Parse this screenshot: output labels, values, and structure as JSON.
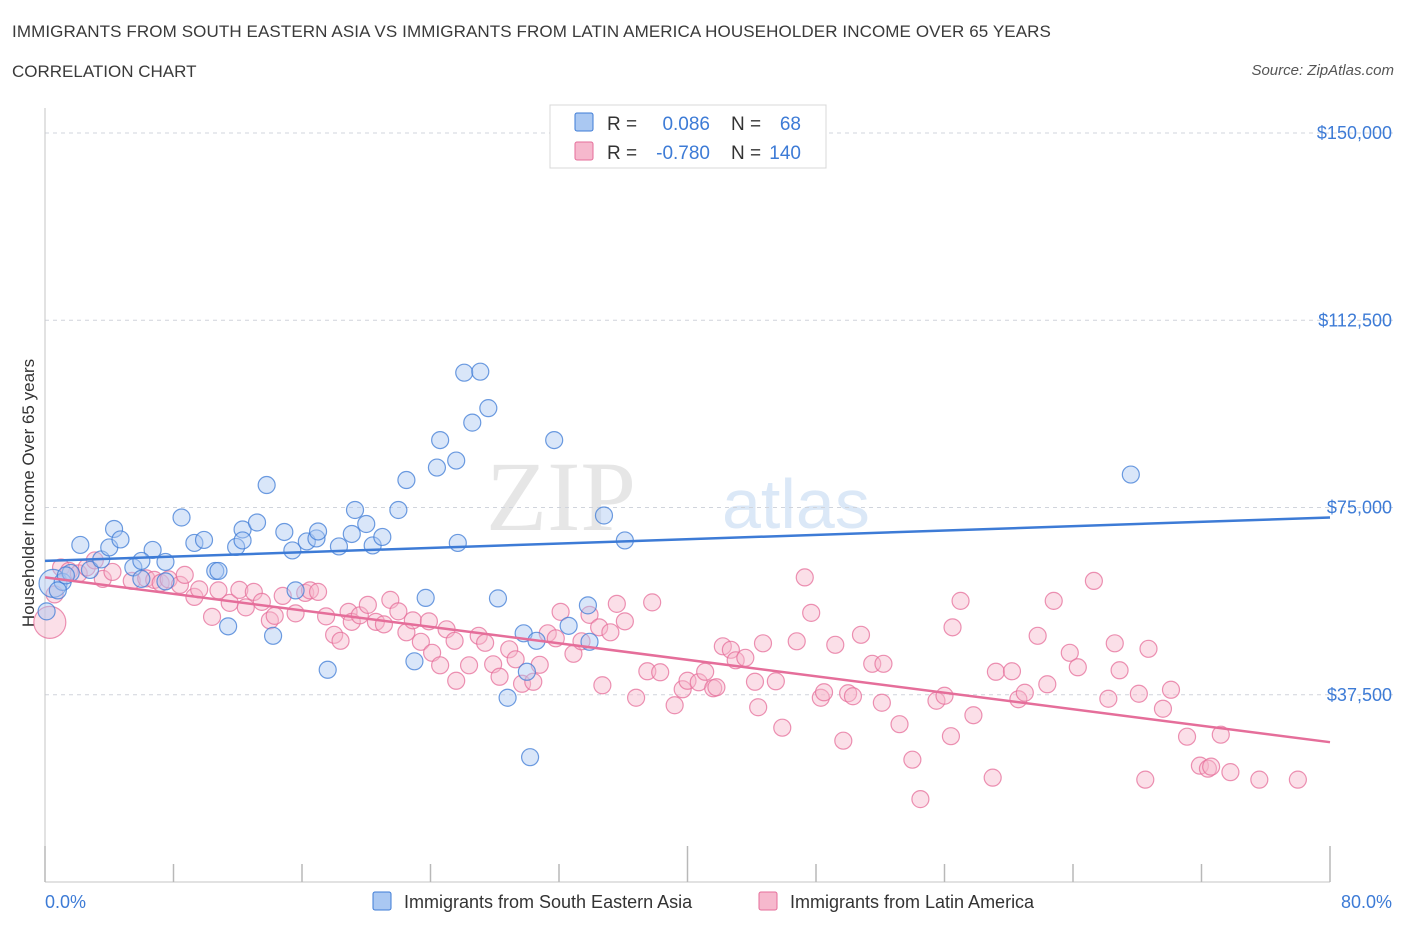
{
  "title": "IMMIGRANTS FROM SOUTH EASTERN ASIA VS IMMIGRANTS FROM LATIN AMERICA HOUSEHOLDER INCOME OVER 65 YEARS",
  "subtitle": "CORRELATION CHART",
  "source": "Source: ZipAtlas.com",
  "watermark": {
    "zip": "ZIP",
    "atlas": "atlas"
  },
  "colors": {
    "blue": "#3d7bd6",
    "blue_fill": "#aac8f2",
    "pink": "#e56e9a",
    "pink_fill": "#f6b8cd",
    "grid": "#d0d4dc",
    "value_text": "#3d7bd6"
  },
  "stats": [
    {
      "series": "Immigrants from South Eastern Asia",
      "r_label": "R =",
      "r": "0.086",
      "n_label": "N =",
      "n": "68",
      "color": "blue"
    },
    {
      "series": "Immigrants from Latin America",
      "r_label": "R =",
      "r": "-0.780",
      "n_label": "N =",
      "n": "140",
      "color": "pink"
    }
  ],
  "chart_data": {
    "type": "scatter",
    "title": "IMMIGRANTS FROM SOUTH EASTERN ASIA VS IMMIGRANTS FROM LATIN AMERICA HOUSEHOLDER INCOME OVER 65 YEARS",
    "xlabel": "",
    "ylabel": "Householder Income Over 65 years",
    "xlim": [
      0,
      80
    ],
    "ylim": [
      0,
      150000
    ],
    "x_tick_labels": [
      "0.0%",
      "80.0%"
    ],
    "y_ticks": [
      37500,
      75000,
      112500,
      150000
    ],
    "y_tick_labels": [
      "$37,500",
      "$75,000",
      "$112,500",
      "$150,000"
    ],
    "grid": "horizontal dashed",
    "legend_position": "bottom",
    "series": [
      {
        "name": "Immigrants from South Eastern Asia",
        "color": "blue",
        "trend": {
          "x": [
            0,
            80
          ],
          "y": [
            64300,
            73000
          ]
        },
        "points": [
          [
            0.5,
            59800
          ],
          [
            1.1,
            60100
          ],
          [
            1.6,
            61900
          ],
          [
            2.2,
            67500
          ],
          [
            2.8,
            62500
          ],
          [
            3.5,
            64600
          ],
          [
            4.0,
            67000
          ],
          [
            4.3,
            70700
          ],
          [
            4.7,
            68600
          ],
          [
            5.5,
            63000
          ],
          [
            6.0,
            60700
          ],
          [
            6.7,
            66500
          ],
          [
            6.0,
            64300
          ],
          [
            7.5,
            64100
          ],
          [
            7.5,
            60200
          ],
          [
            8.5,
            73000
          ],
          [
            9.3,
            67900
          ],
          [
            9.9,
            68500
          ],
          [
            10.6,
            62300
          ],
          [
            10.8,
            62300
          ],
          [
            11.4,
            51200
          ],
          [
            11.9,
            67100
          ],
          [
            12.3,
            70600
          ],
          [
            12.3,
            68400
          ],
          [
            13.2,
            72000
          ],
          [
            13.8,
            79500
          ],
          [
            14.2,
            49300
          ],
          [
            14.9,
            70100
          ],
          [
            15.4,
            66400
          ],
          [
            15.6,
            58400
          ],
          [
            16.3,
            68200
          ],
          [
            16.9,
            68800
          ],
          [
            17.0,
            70200
          ],
          [
            17.6,
            42500
          ],
          [
            18.3,
            67200
          ],
          [
            19.1,
            69700
          ],
          [
            19.3,
            74500
          ],
          [
            20.0,
            71700
          ],
          [
            20.4,
            67400
          ],
          [
            21.0,
            69100
          ],
          [
            22.0,
            74500
          ],
          [
            22.5,
            80500
          ],
          [
            23.0,
            44200
          ],
          [
            23.7,
            56900
          ],
          [
            24.4,
            83000
          ],
          [
            24.6,
            88500
          ],
          [
            25.6,
            84400
          ],
          [
            25.7,
            67900
          ],
          [
            26.1,
            102000
          ],
          [
            26.6,
            92000
          ],
          [
            27.1,
            102200
          ],
          [
            27.6,
            94900
          ],
          [
            28.2,
            56800
          ],
          [
            28.8,
            36900
          ],
          [
            29.8,
            49800
          ],
          [
            30.0,
            42100
          ],
          [
            30.2,
            25000
          ],
          [
            30.6,
            48300
          ],
          [
            31.7,
            88500
          ],
          [
            32.6,
            51300
          ],
          [
            33.8,
            55400
          ],
          [
            33.9,
            48100
          ],
          [
            34.8,
            73400
          ],
          [
            36.1,
            68400
          ],
          [
            67.6,
            81600
          ],
          [
            0.1,
            54200
          ],
          [
            0.8,
            58400
          ],
          [
            1.3,
            61400
          ]
        ]
      },
      {
        "name": "Immigrants from Latin America",
        "color": "pink",
        "trend": {
          "x": [
            0,
            80
          ],
          "y": [
            61000,
            28000
          ]
        },
        "points": [
          [
            0.3,
            52000
          ],
          [
            0.6,
            57600
          ],
          [
            1.0,
            63000
          ],
          [
            1.5,
            62300
          ],
          [
            2.1,
            61800
          ],
          [
            2.6,
            63000
          ],
          [
            3.1,
            64400
          ],
          [
            3.6,
            60700
          ],
          [
            4.2,
            62100
          ],
          [
            5.4,
            60300
          ],
          [
            6.3,
            60800
          ],
          [
            6.8,
            60500
          ],
          [
            7.2,
            59900
          ],
          [
            7.7,
            60600
          ],
          [
            8.4,
            59500
          ],
          [
            8.7,
            61500
          ],
          [
            9.3,
            57100
          ],
          [
            9.6,
            58600
          ],
          [
            10.4,
            53100
          ],
          [
            10.8,
            58400
          ],
          [
            11.5,
            55900
          ],
          [
            12.1,
            58500
          ],
          [
            12.5,
            55000
          ],
          [
            13.0,
            58100
          ],
          [
            13.5,
            56100
          ],
          [
            14.0,
            52400
          ],
          [
            14.3,
            53300
          ],
          [
            14.8,
            57300
          ],
          [
            15.6,
            53800
          ],
          [
            16.2,
            57900
          ],
          [
            16.5,
            58400
          ],
          [
            17.0,
            58100
          ],
          [
            17.5,
            53200
          ],
          [
            18.0,
            49500
          ],
          [
            18.4,
            48300
          ],
          [
            18.9,
            54100
          ],
          [
            19.1,
            52100
          ],
          [
            19.6,
            53400
          ],
          [
            20.1,
            55500
          ],
          [
            20.6,
            52100
          ],
          [
            21.1,
            51600
          ],
          [
            21.5,
            56500
          ],
          [
            22.0,
            54200
          ],
          [
            22.5,
            50000
          ],
          [
            22.9,
            52400
          ],
          [
            23.4,
            48100
          ],
          [
            23.9,
            52200
          ],
          [
            24.1,
            45900
          ],
          [
            24.6,
            43400
          ],
          [
            25.0,
            50600
          ],
          [
            25.5,
            48300
          ],
          [
            25.6,
            40300
          ],
          [
            26.4,
            43400
          ],
          [
            27.0,
            49300
          ],
          [
            27.4,
            47900
          ],
          [
            27.9,
            43600
          ],
          [
            28.3,
            41100
          ],
          [
            28.9,
            46600
          ],
          [
            29.3,
            44600
          ],
          [
            29.7,
            39700
          ],
          [
            30.4,
            40100
          ],
          [
            30.8,
            43500
          ],
          [
            31.3,
            49800
          ],
          [
            31.8,
            48800
          ],
          [
            32.1,
            54100
          ],
          [
            32.9,
            45700
          ],
          [
            33.4,
            48200
          ],
          [
            33.9,
            53500
          ],
          [
            34.5,
            51000
          ],
          [
            34.7,
            39400
          ],
          [
            35.2,
            50000
          ],
          [
            35.6,
            55700
          ],
          [
            36.1,
            52200
          ],
          [
            36.8,
            36900
          ],
          [
            37.5,
            42200
          ],
          [
            37.8,
            56000
          ],
          [
            38.3,
            42000
          ],
          [
            39.2,
            35400
          ],
          [
            39.7,
            38600
          ],
          [
            40.0,
            40300
          ],
          [
            40.7,
            40000
          ],
          [
            41.1,
            42100
          ],
          [
            41.6,
            38800
          ],
          [
            41.8,
            39000
          ],
          [
            42.2,
            47200
          ],
          [
            42.7,
            46500
          ],
          [
            43.0,
            44400
          ],
          [
            43.6,
            44900
          ],
          [
            44.2,
            40100
          ],
          [
            44.4,
            35000
          ],
          [
            44.7,
            47800
          ],
          [
            45.5,
            40200
          ],
          [
            45.9,
            30900
          ],
          [
            46.8,
            48200
          ],
          [
            47.3,
            61000
          ],
          [
            47.7,
            53900
          ],
          [
            48.3,
            36900
          ],
          [
            48.5,
            38000
          ],
          [
            49.2,
            47500
          ],
          [
            49.7,
            28300
          ],
          [
            50.0,
            37800
          ],
          [
            50.3,
            37200
          ],
          [
            50.8,
            49500
          ],
          [
            51.5,
            43700
          ],
          [
            52.1,
            35900
          ],
          [
            52.2,
            43700
          ],
          [
            53.2,
            31600
          ],
          [
            54.0,
            24500
          ],
          [
            54.5,
            16600
          ],
          [
            55.5,
            36300
          ],
          [
            56.0,
            37300
          ],
          [
            56.4,
            29200
          ],
          [
            56.5,
            51000
          ],
          [
            57.0,
            56300
          ],
          [
            57.8,
            33400
          ],
          [
            59.0,
            20900
          ],
          [
            59.2,
            42100
          ],
          [
            60.2,
            42200
          ],
          [
            60.6,
            36600
          ],
          [
            61.0,
            37900
          ],
          [
            61.8,
            49300
          ],
          [
            62.4,
            39600
          ],
          [
            62.8,
            56300
          ],
          [
            63.8,
            45900
          ],
          [
            64.3,
            43000
          ],
          [
            65.3,
            60300
          ],
          [
            66.2,
            36700
          ],
          [
            66.6,
            47800
          ],
          [
            66.9,
            42400
          ],
          [
            68.1,
            37700
          ],
          [
            68.5,
            20500
          ],
          [
            68.7,
            46700
          ],
          [
            69.6,
            34700
          ],
          [
            70.1,
            38500
          ],
          [
            71.1,
            29100
          ],
          [
            71.9,
            23300
          ],
          [
            72.4,
            22700
          ],
          [
            72.6,
            23100
          ],
          [
            73.2,
            29500
          ],
          [
            73.8,
            22000
          ],
          [
            75.6,
            20500
          ],
          [
            78.0,
            20500
          ]
        ]
      }
    ]
  },
  "legend": [
    {
      "label": "Immigrants from South Eastern Asia",
      "color": "blue"
    },
    {
      "label": "Immigrants from Latin America",
      "color": "pink"
    }
  ]
}
